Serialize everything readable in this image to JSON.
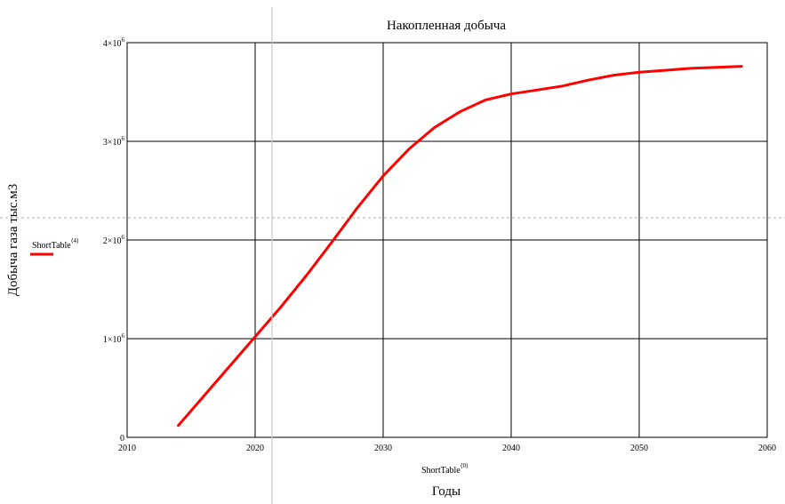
{
  "chart_data": {
    "type": "line",
    "title": "Накопленная добыча",
    "xlabel": "Годы",
    "ylabel": "Добыча газа тыс.м3",
    "x_expr": {
      "base": "ShortTable",
      "sup": "⟨0⟩"
    },
    "legend": {
      "base": "ShortTable",
      "sup": "⟨4⟩",
      "color": "#ff0000",
      "placement": "left"
    },
    "xlim": [
      2010,
      2060
    ],
    "ylim": [
      0,
      4000000
    ],
    "x_ticks": [
      "2010",
      "2020",
      "2030",
      "2040",
      "2050",
      "2060"
    ],
    "y_ticks": [
      {
        "value": 0,
        "base": "0",
        "exp": ""
      },
      {
        "value": 1000000,
        "base": "1×10",
        "exp": "6"
      },
      {
        "value": 2000000,
        "base": "2×10",
        "exp": "6"
      },
      {
        "value": 3000000,
        "base": "3×10",
        "exp": "6"
      },
      {
        "value": 4000000,
        "base": "4×10",
        "exp": "6"
      }
    ],
    "grid": true,
    "series": [
      {
        "color": "#ff0000",
        "x": [
          2014,
          2016,
          2018,
          2020,
          2022,
          2024,
          2026,
          2028,
          2030,
          2032,
          2034,
          2036,
          2038,
          2040,
          2042,
          2044,
          2046,
          2048,
          2050,
          2052,
          2054,
          2056,
          2058
        ],
        "y": [
          120000,
          420000,
          720000,
          1020000,
          1320000,
          1640000,
          1980000,
          2330000,
          2650000,
          2920000,
          3140000,
          3300000,
          3420000,
          3480000,
          3520000,
          3560000,
          3620000,
          3670000,
          3700000,
          3720000,
          3740000,
          3750000,
          3760000
        ]
      }
    ]
  }
}
